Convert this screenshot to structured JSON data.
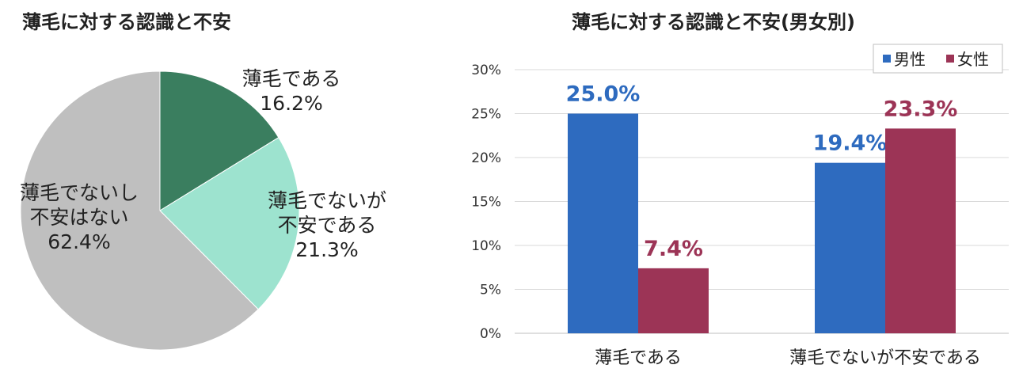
{
  "pie": {
    "title": "薄毛に対する認識と不安"
  },
  "bar": {
    "title": "薄毛に対する認識と不安(男女別)",
    "legend": [
      "男性",
      "女性"
    ]
  },
  "chart_data": [
    {
      "type": "pie",
      "title": "薄毛に対する認識と不安",
      "start_angle_deg": 0,
      "direction": "clockwise",
      "slices": [
        {
          "label": [
            "薄毛である"
          ],
          "value": 16.2,
          "value_label": "16.2%",
          "color": "#3a7e5f"
        },
        {
          "label": [
            "薄毛でないが",
            "不安である"
          ],
          "value": 21.3,
          "value_label": "21.3%",
          "color": "#9de3cf"
        },
        {
          "label": [
            "薄毛でないし",
            "不安はない"
          ],
          "value": 62.4,
          "value_label": "62.4%",
          "color": "#bfbfbf"
        }
      ]
    },
    {
      "type": "bar",
      "title": "薄毛に対する認識と不安(男女別)",
      "categories": [
        "薄毛である",
        "薄毛でないが不安である"
      ],
      "series": [
        {
          "name": "男性",
          "values": [
            25.0,
            19.4
          ],
          "labels": [
            "25.0%",
            "19.4%"
          ],
          "color": "#2e6bbf"
        },
        {
          "name": "女性",
          "values": [
            7.4,
            23.3
          ],
          "labels": [
            "7.4%",
            "23.3%"
          ],
          "color": "#9c3456"
        }
      ],
      "ylim": [
        0,
        30
      ],
      "yticks": [
        "0%",
        "5%",
        "10%",
        "15%",
        "20%",
        "25%",
        "30%"
      ],
      "grid": true,
      "legend_position": "top-right"
    }
  ]
}
